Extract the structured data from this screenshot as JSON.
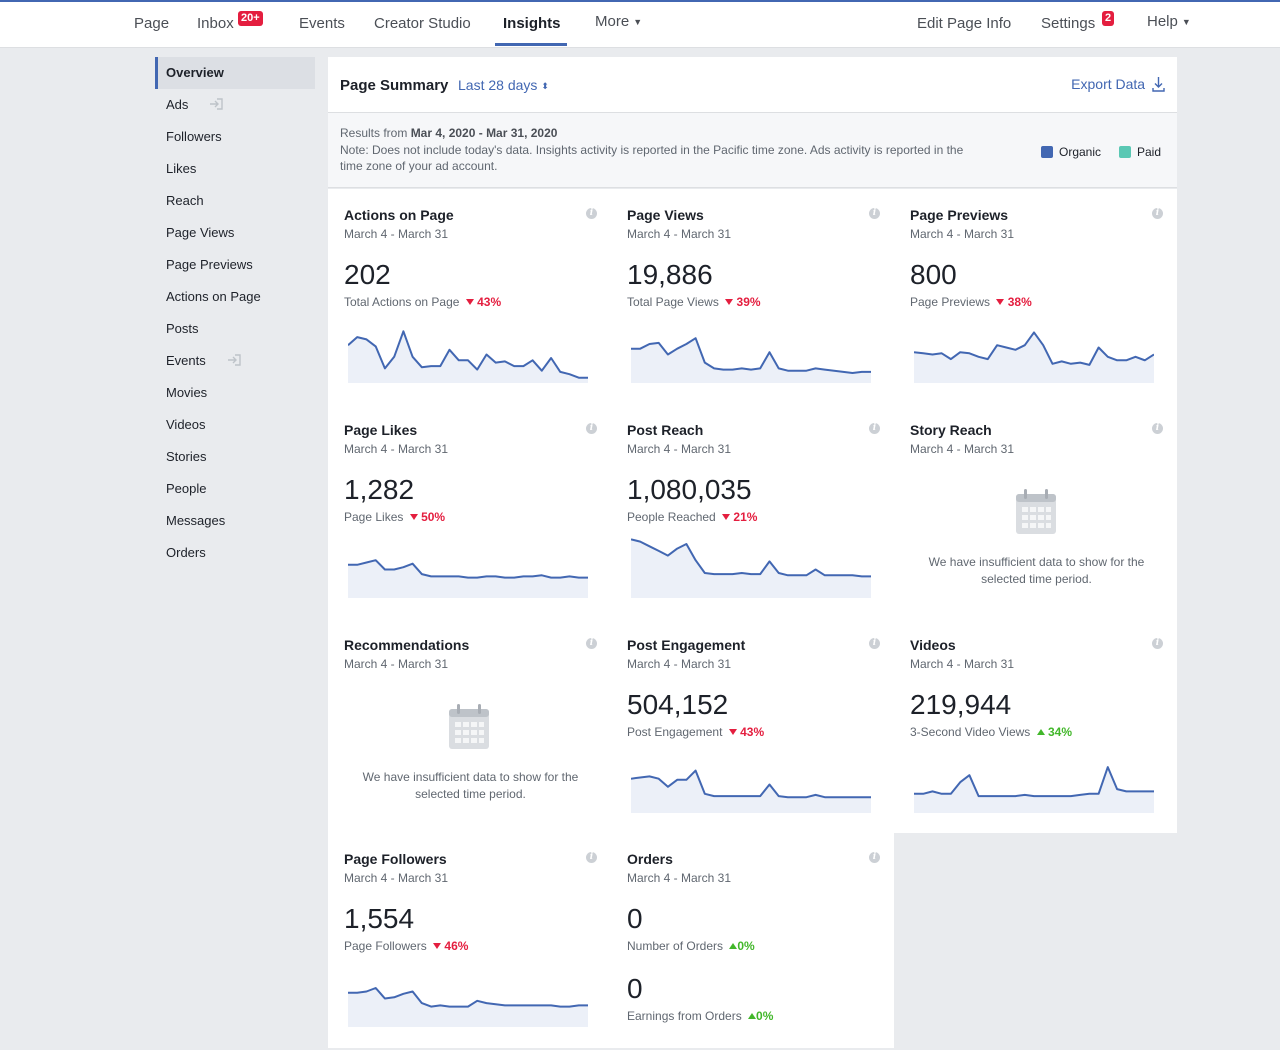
{
  "nav": {
    "page": "Page",
    "inbox": "Inbox",
    "inbox_badge": "20+",
    "events": "Events",
    "creator_studio": "Creator Studio",
    "insights": "Insights",
    "more": "More",
    "edit_page_info": "Edit Page Info",
    "settings": "Settings",
    "settings_badge": "2",
    "help": "Help"
  },
  "sidebar": {
    "items": [
      {
        "label": "Overview"
      },
      {
        "label": "Ads"
      },
      {
        "label": "Followers"
      },
      {
        "label": "Likes"
      },
      {
        "label": "Reach"
      },
      {
        "label": "Page Views"
      },
      {
        "label": "Page Previews"
      },
      {
        "label": "Actions on Page"
      },
      {
        "label": "Posts"
      },
      {
        "label": "Events"
      },
      {
        "label": "Movies"
      },
      {
        "label": "Videos"
      },
      {
        "label": "Stories"
      },
      {
        "label": "People"
      },
      {
        "label": "Messages"
      },
      {
        "label": "Orders"
      }
    ]
  },
  "summary": {
    "title": "Page Summary",
    "range": "Last 28 days",
    "export": "Export Data",
    "results_prefix": "Results from ",
    "results_range": "Mar 4, 2020 - Mar 31, 2020",
    "note": "Note: Does not include today's data. Insights activity is reported in the Pacific time zone. Ads activity is reported in the time zone of your ad account.",
    "legend_organic": "Organic",
    "legend_paid": "Paid"
  },
  "colors": {
    "accent": "#4267b2",
    "organic": "#4267b2",
    "paid": "#5ac8b4",
    "spark_line": "#4267b2",
    "spark_fill": "#ecf0f8",
    "down": "#e41e3f",
    "up": "#42b72a"
  },
  "cards": {
    "actions": {
      "title": "Actions on Page",
      "dates": "March 4 - March 31",
      "value": "202",
      "metric": "Total Actions on Page",
      "change": "43%",
      "spark": [
        30,
        37,
        35,
        29,
        10,
        20,
        42,
        20,
        11,
        12,
        12,
        26,
        17,
        17,
        9,
        22,
        15,
        16,
        12,
        12,
        17,
        8,
        19,
        7,
        5,
        2,
        2
      ]
    },
    "views": {
      "title": "Page Views",
      "dates": "March 4 - March 31",
      "value": "19,886",
      "metric": "Total Page Views",
      "change": "39%",
      "spark": [
        27,
        27,
        31,
        32,
        22,
        27,
        31,
        36,
        15,
        10,
        9,
        9,
        10,
        9,
        10,
        24,
        10,
        8,
        8,
        8,
        10,
        9,
        8,
        7,
        6,
        7,
        7
      ]
    },
    "previews": {
      "title": "Page Previews",
      "dates": "March 4 - March 31",
      "value": "800",
      "metric": "Page Previews",
      "change": "38%",
      "spark": [
        24,
        23,
        22,
        23,
        18,
        24,
        23,
        20,
        18,
        30,
        28,
        26,
        30,
        41,
        30,
        14,
        16,
        14,
        15,
        13,
        28,
        20,
        17,
        17,
        20,
        17,
        22
      ]
    },
    "likes": {
      "title": "Page Likes",
      "dates": "March 4 - March 31",
      "value": "1,282",
      "metric": "Page Likes",
      "change": "50%",
      "spark": [
        26,
        26,
        28,
        30,
        22,
        22,
        24,
        27,
        18,
        16,
        16,
        16,
        16,
        15,
        15,
        16,
        16,
        15,
        15,
        16,
        16,
        17,
        15,
        15,
        16,
        15,
        15
      ]
    },
    "reach": {
      "title": "Post Reach",
      "dates": "March 4 - March 31",
      "value": "1,080,035",
      "metric": "People Reached",
      "change": "21%",
      "spark": [
        48,
        46,
        42,
        38,
        34,
        40,
        44,
        30,
        19,
        18,
        18,
        18,
        19,
        18,
        18,
        29,
        19,
        17,
        17,
        17,
        22,
        17,
        17,
        17,
        17,
        16,
        16
      ]
    },
    "story": {
      "title": "Story Reach",
      "dates": "March 4 - March 31",
      "nodata": "We have insufficient data to show for the selected time period."
    },
    "recs": {
      "title": "Recommendations",
      "dates": "March 4 - March 31",
      "nodata": "We have insufficient data to show for the selected time period."
    },
    "engagement": {
      "title": "Post Engagement",
      "dates": "March 4 - March 31",
      "value": "504,152",
      "metric": "Post Engagement",
      "change": "43%",
      "spark": [
        27,
        28,
        29,
        27,
        20,
        26,
        26,
        34,
        14,
        12,
        12,
        12,
        12,
        12,
        12,
        22,
        12,
        11,
        11,
        11,
        13,
        11,
        11,
        11,
        11,
        11,
        11
      ]
    },
    "videos": {
      "title": "Videos",
      "dates": "March 4 - March 31",
      "value": "219,944",
      "metric": "3-Second Video Views",
      "change": "34%",
      "spark": [
        14,
        14,
        16,
        14,
        14,
        24,
        30,
        12,
        12,
        12,
        12,
        12,
        13,
        12,
        12,
        12,
        12,
        12,
        13,
        14,
        14,
        37,
        18,
        16,
        16,
        16,
        16
      ]
    },
    "followers": {
      "title": "Page Followers",
      "dates": "March 4 - March 31",
      "value": "1,554",
      "metric": "Page Followers",
      "change": "46%",
      "spark": [
        27,
        27,
        28,
        31,
        22,
        23,
        26,
        28,
        18,
        15,
        16,
        15,
        15,
        15,
        20,
        18,
        17,
        16,
        16,
        16,
        16,
        16,
        16,
        15,
        15,
        16,
        16
      ]
    },
    "orders": {
      "title": "Orders",
      "dates": "March 4 - March 31",
      "value": "0",
      "metric": "Number of Orders",
      "change": "0%",
      "value2": "0",
      "metric2": "Earnings from Orders",
      "change2": "0%"
    }
  }
}
